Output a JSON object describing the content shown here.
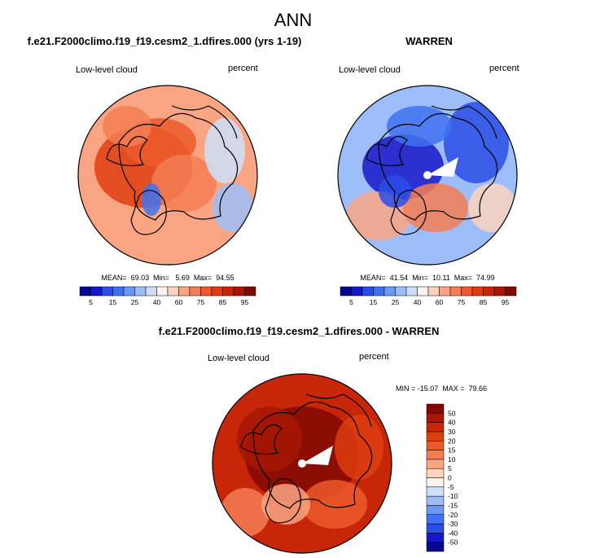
{
  "page": {
    "season": "ANN"
  },
  "chart_data": [
    {
      "type": "heatmap",
      "projection": "north-polar-stereographic",
      "title": "f.e21.F2000climo.f19_f19.cesm2_1.dfires.000 (yrs 1-19)",
      "variable": "Low-level cloud",
      "units": "percent",
      "stats_text": "MEAN=  69.03  Min=   5.69  Max=  94.55",
      "stats": {
        "mean": 69.03,
        "min": 5.69,
        "max": 94.55
      },
      "dominant_level_index": 9,
      "colorbar": {
        "orientation": "horizontal",
        "levels": [
          5,
          10,
          15,
          20,
          25,
          30,
          40,
          50,
          60,
          70,
          75,
          80,
          85,
          90,
          95
        ],
        "tick_labels": [
          "5",
          "15",
          "25",
          "40",
          "60",
          "75",
          "85",
          "95"
        ],
        "colors": [
          "#08088c",
          "#1717c8",
          "#2a4de6",
          "#3f72f0",
          "#6b97f5",
          "#9dbdf8",
          "#cddff9",
          "#f8f3ee",
          "#fcd3bd",
          "#f9a583",
          "#f47e54",
          "#ec5a2c",
          "#de3d11",
          "#c72708",
          "#a61704",
          "#800903"
        ]
      }
    },
    {
      "type": "heatmap",
      "projection": "north-polar-stereographic",
      "title": "WARREN",
      "variable": "Low-level cloud",
      "units": "percent",
      "stats_text": "MEAN=  41.54  Min=  10.11  Max=  74.99",
      "stats": {
        "mean": 41.54,
        "min": 10.11,
        "max": 74.99
      },
      "dominant_level_index": 5,
      "colorbar": {
        "orientation": "horizontal",
        "levels": [
          5,
          10,
          15,
          20,
          25,
          30,
          40,
          50,
          60,
          70,
          75,
          80,
          85,
          90,
          95
        ],
        "tick_labels": [
          "5",
          "15",
          "25",
          "40",
          "60",
          "75",
          "85",
          "95"
        ],
        "colors": [
          "#08088c",
          "#1717c8",
          "#2a4de6",
          "#3f72f0",
          "#6b97f5",
          "#9dbdf8",
          "#cddff9",
          "#f8f3ee",
          "#fcd3bd",
          "#f9a583",
          "#f47e54",
          "#ec5a2c",
          "#de3d11",
          "#c72708",
          "#a61704",
          "#800903"
        ]
      }
    },
    {
      "type": "heatmap",
      "projection": "north-polar-stereographic",
      "title": "f.e21.F2000climo.f19_f19.cesm2_1.dfires.000 - WARREN",
      "variable": "Low-level cloud",
      "units": "percent",
      "stats_text": "MIN = -15.07  MAX =  79.66",
      "stats": {
        "min": -15.07,
        "max": 79.66
      },
      "dominant_level_index": 13,
      "colorbar": {
        "orientation": "vertical",
        "levels": [
          -50,
          -40,
          -30,
          -20,
          -15,
          -10,
          -5,
          0,
          5,
          10,
          15,
          20,
          30,
          40,
          50
        ],
        "tick_labels": [
          "-50",
          "-40",
          "-30",
          "-20",
          "-15",
          "-10",
          "-5",
          "0",
          "5",
          "10",
          "15",
          "20",
          "30",
          "40",
          "50"
        ],
        "colors": [
          "#08088c",
          "#1717c8",
          "#2a4de6",
          "#3f72f0",
          "#6b97f5",
          "#9dbdf8",
          "#cddff9",
          "#f8f3ee",
          "#fcd3bd",
          "#f9a583",
          "#f47e54",
          "#ec5a2c",
          "#de3d11",
          "#c72708",
          "#a61704",
          "#800903"
        ]
      }
    }
  ]
}
